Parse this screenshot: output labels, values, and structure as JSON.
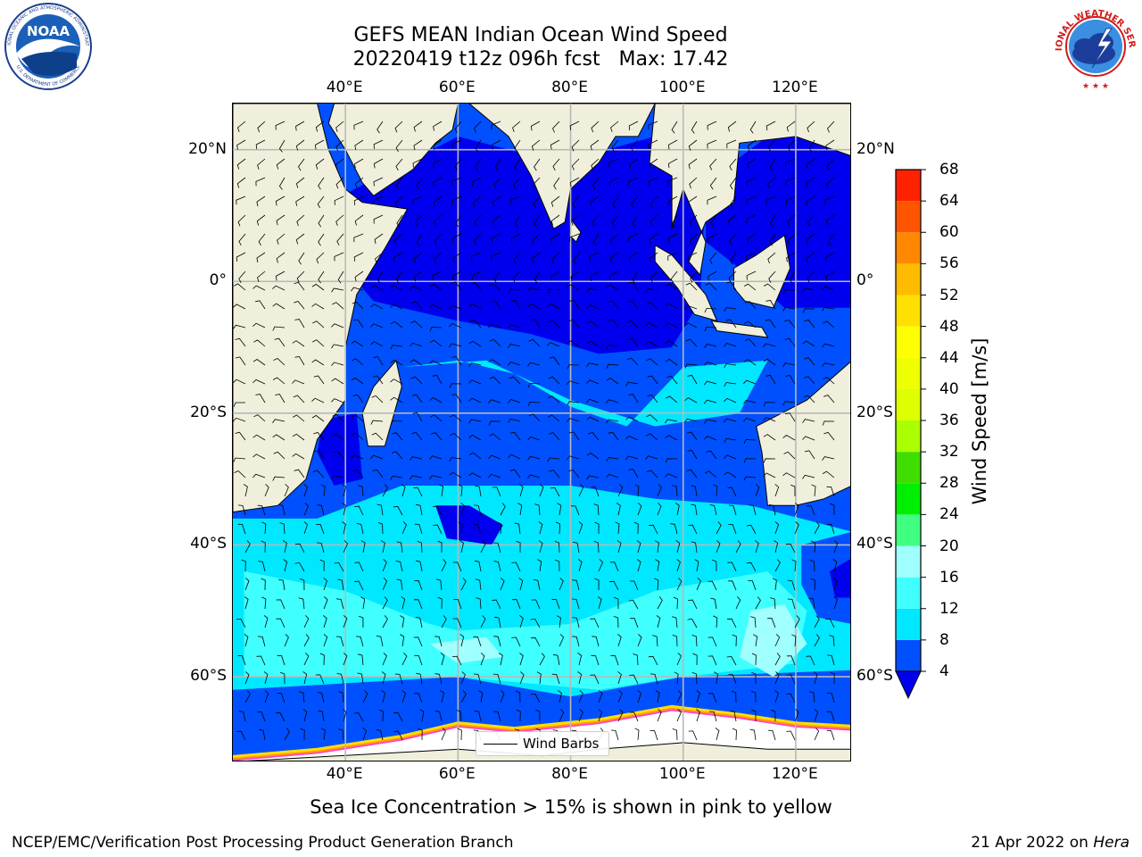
{
  "figure": {
    "title_line1": "GEFS MEAN Indian Ocean Wind Speed",
    "title_line2": "20220419 t12z 096h fcst   Max: 17.42",
    "caption": "Sea Ice Concentration > 15% is shown in pink to yellow",
    "footer_left": "NCEP/EMC/Verification Post Processing Product Generation Branch",
    "footer_date": "21 Apr 2022 on",
    "footer_machine": "Hera",
    "legend_label": "Wind Barbs"
  },
  "logos": {
    "noaa": {
      "text": "NOAA",
      "ring_text": "NATIONAL OCEANIC AND ATMOSPHERIC ADMINISTRATION",
      "ring_bottom": "U.S. DEPARTMENT OF COMMERCE"
    },
    "nws": {
      "ring_text": "NATIONAL WEATHER SERVICE"
    }
  },
  "map": {
    "region": "Indian Ocean",
    "lon_range": [
      20,
      130
    ],
    "lat_range": [
      -73,
      27
    ],
    "lon_ticks": [
      {
        "value": 40,
        "label": "40°E"
      },
      {
        "value": 60,
        "label": "60°E"
      },
      {
        "value": 80,
        "label": "80°E"
      },
      {
        "value": 100,
        "label": "100°E"
      },
      {
        "value": 120,
        "label": "120°E"
      }
    ],
    "lat_ticks": [
      {
        "value": 20,
        "label": "20°N"
      },
      {
        "value": 0,
        "label": "0°"
      },
      {
        "value": -20,
        "label": "20°S"
      },
      {
        "value": -40,
        "label": "40°S"
      },
      {
        "value": -60,
        "label": "60°S"
      }
    ],
    "gridlines": true,
    "land_color": "#efefdc",
    "sea_ice_color": "#ffffff",
    "sea_ice_edge_colors": [
      "#ff44cc",
      "#ff9900",
      "#ffdd00"
    ]
  },
  "colorbar": {
    "label": "Wind Speed [m/s]",
    "ticks": [
      "4",
      "8",
      "12",
      "16",
      "20",
      "24",
      "28",
      "32",
      "36",
      "40",
      "44",
      "48",
      "52",
      "56",
      "60",
      "64",
      "68"
    ],
    "colors": [
      "#0050ff",
      "#00e8ff",
      "#40ffff",
      "#a0ffff",
      "#40ff80",
      "#00ee00",
      "#40dd00",
      "#aaff00",
      "#ddff00",
      "#eeff00",
      "#ffff00",
      "#ffe000",
      "#ffbb00",
      "#ff8800",
      "#ff5500",
      "#ff2200"
    ],
    "under_color": "#0000ee",
    "extend": "min"
  }
}
